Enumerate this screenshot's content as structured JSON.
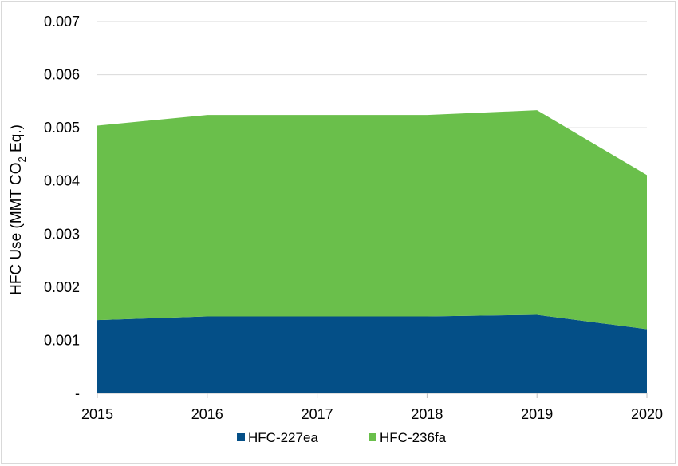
{
  "chart_data": {
    "type": "area",
    "stacked": true,
    "x": [
      "2015",
      "2016",
      "2017",
      "2018",
      "2019",
      "2020"
    ],
    "series": [
      {
        "name": "HFC-227ea",
        "color": "#044f87",
        "values": [
          0.00138,
          0.00145,
          0.00145,
          0.00145,
          0.00148,
          0.00121
        ]
      },
      {
        "name": "HFC-236fa",
        "color": "#6abf4b",
        "values": [
          0.00366,
          0.00379,
          0.00379,
          0.00379,
          0.00385,
          0.0029
        ]
      }
    ],
    "ylabel": "HFC Use (MMT CO2 Eq.)",
    "ylabel_parts": {
      "before": "HFC Use (MMT CO",
      "sub": "2",
      "after": " Eq.)"
    },
    "ylim": [
      0,
      0.007
    ],
    "yticks": [
      "-",
      "0.001",
      "0.002",
      "0.003",
      "0.004",
      "0.005",
      "0.006",
      "0.007"
    ],
    "grid": true,
    "legend": "bottom"
  }
}
